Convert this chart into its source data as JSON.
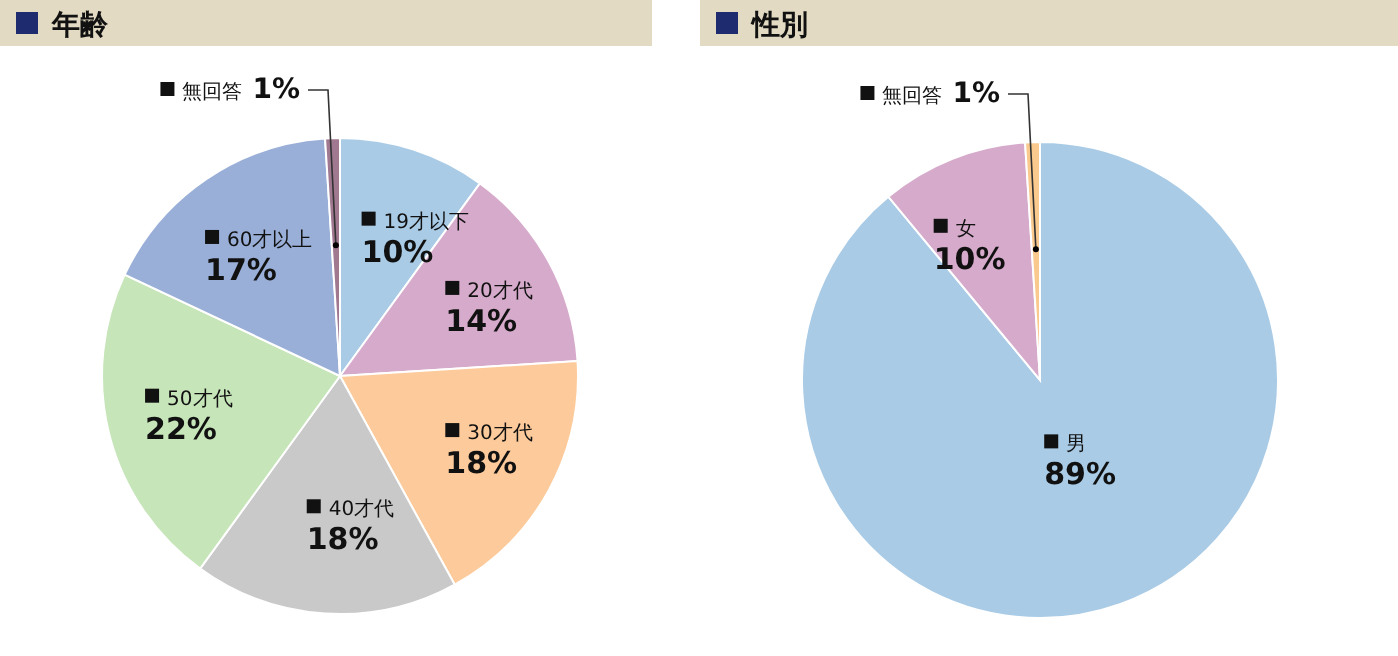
{
  "chart_data": [
    {
      "type": "pie",
      "title": "年齢",
      "categories": [
        "19才以下",
        "20才代",
        "30才代",
        "40才代",
        "50才代",
        "60才以上",
        "無回答"
      ],
      "values": [
        10,
        14,
        18,
        18,
        22,
        17,
        1
      ],
      "value_labels": [
        "10%",
        "14%",
        "18%",
        "18%",
        "22%",
        "17%",
        "1%"
      ],
      "colors": [
        "#a9cbe6",
        "#d6aacb",
        "#fdcb9b",
        "#c9c9c9",
        "#c6e5b9",
        "#99afd8",
        "#a07890"
      ]
    },
    {
      "type": "pie",
      "title": "性別",
      "categories": [
        "男",
        "女",
        "無回答"
      ],
      "values": [
        89,
        10,
        1
      ],
      "value_labels": [
        "89%",
        "10%",
        "1%"
      ],
      "colors": [
        "#a9cbe6",
        "#d6aacb",
        "#f9c98e"
      ]
    }
  ]
}
